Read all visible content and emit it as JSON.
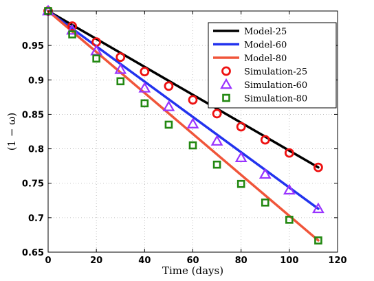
{
  "chart_data": {
    "type": "line",
    "xlabel": "Time (days)",
    "ylabel": "(1 − ω)",
    "xlim": [
      0,
      120
    ],
    "ylim": [
      0.65,
      1.0
    ],
    "x_ticks": [
      "0",
      "20",
      "40",
      "60",
      "80",
      "100",
      "120"
    ],
    "y_ticks": [
      "0.65",
      "0.7",
      "0.75",
      "0.8",
      "0.85",
      "0.9",
      "0.95"
    ],
    "grid": true,
    "legend_position": "top-right",
    "model_series": [
      {
        "name": "Model-25",
        "color": "#000000",
        "x": [
          0,
          112
        ],
        "y": [
          1.0,
          0.773
        ]
      },
      {
        "name": "Model-60",
        "color": "#2233ee",
        "x": [
          0,
          112
        ],
        "y": [
          1.0,
          0.713
        ]
      },
      {
        "name": "Model-80",
        "color": "#f0553a",
        "x": [
          0,
          112
        ],
        "y": [
          1.0,
          0.667
        ]
      }
    ],
    "simulation_series": [
      {
        "name": "Simulation-25",
        "marker": "circle",
        "color": "#ee1111",
        "x": [
          0,
          10,
          20,
          30,
          40,
          50,
          60,
          70,
          80,
          90,
          100,
          112
        ],
        "y": [
          1.0,
          0.978,
          0.955,
          0.933,
          0.912,
          0.891,
          0.871,
          0.851,
          0.832,
          0.813,
          0.794,
          0.773
        ]
      },
      {
        "name": "Simulation-60",
        "marker": "triangle",
        "color": "#9933ff",
        "x": [
          0,
          10,
          20,
          30,
          40,
          50,
          60,
          70,
          80,
          90,
          100,
          112
        ],
        "y": [
          1.0,
          0.972,
          0.942,
          0.915,
          0.888,
          0.861,
          0.836,
          0.811,
          0.787,
          0.763,
          0.74,
          0.713
        ]
      },
      {
        "name": "Simulation-80",
        "marker": "square",
        "color": "#228811",
        "x": [
          0,
          10,
          20,
          30,
          40,
          50,
          60,
          70,
          80,
          90,
          100,
          112
        ],
        "y": [
          1.0,
          0.966,
          0.931,
          0.898,
          0.866,
          0.835,
          0.805,
          0.777,
          0.749,
          0.722,
          0.697,
          0.667
        ]
      }
    ]
  }
}
